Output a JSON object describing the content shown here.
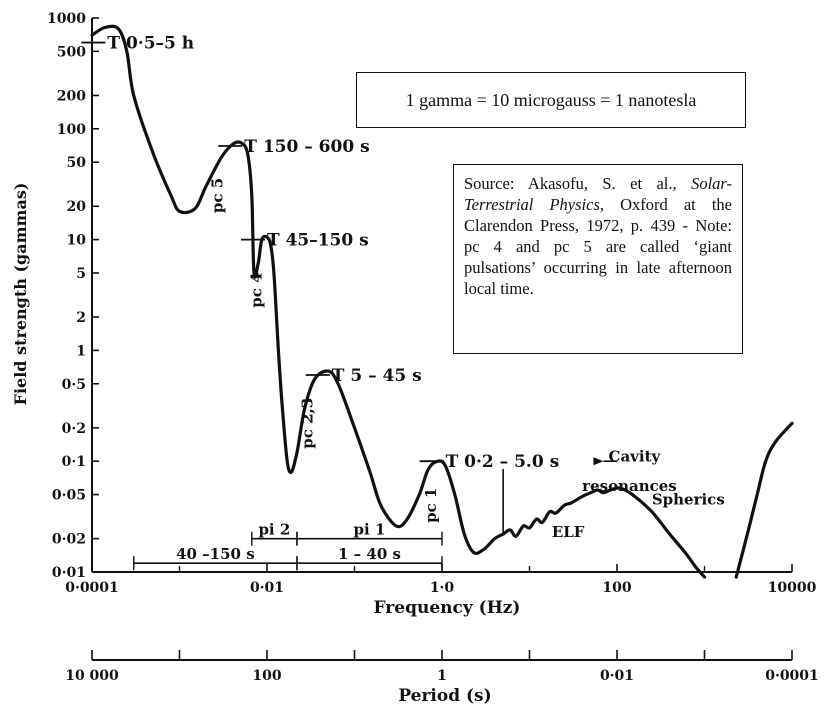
{
  "chart_data": {
    "type": "line",
    "title": "",
    "xlabel": "Frequency (Hz)",
    "ylabel": "Field strength (gammas)",
    "x_scale": "log",
    "y_scale": "log",
    "xlim": [
      0.0001,
      10000
    ],
    "ylim": [
      0.01,
      1000
    ],
    "x_ticks": [
      {
        "value": 0.0001,
        "label": "0·0001"
      },
      {
        "value": 0.01,
        "label": "0·01"
      },
      {
        "value": 1,
        "label": "1·0"
      },
      {
        "value": 100,
        "label": "100"
      },
      {
        "value": 10000,
        "label": "10000"
      }
    ],
    "y_ticks": [
      {
        "value": 1000,
        "label": "1000"
      },
      {
        "value": 500,
        "label": "500"
      },
      {
        "value": 200,
        "label": "200"
      },
      {
        "value": 100,
        "label": "100"
      },
      {
        "value": 50,
        "label": "50"
      },
      {
        "value": 20,
        "label": "20"
      },
      {
        "value": 10,
        "label": "10"
      },
      {
        "value": 5,
        "label": "5"
      },
      {
        "value": 2,
        "label": "2"
      },
      {
        "value": 1,
        "label": "1"
      },
      {
        "value": 0.5,
        "label": "0·5"
      },
      {
        "value": 0.2,
        "label": "0·2"
      },
      {
        "value": 0.1,
        "label": "0·1"
      },
      {
        "value": 0.05,
        "label": "0·05"
      },
      {
        "value": 0.02,
        "label": "0·02"
      },
      {
        "value": 0.01,
        "label": "0·01"
      }
    ],
    "series": [
      {
        "points": [
          [
            0.0001,
            700
          ],
          [
            0.00014,
            820
          ],
          [
            0.0002,
            800
          ],
          [
            0.00025,
            500
          ],
          [
            0.0003,
            200
          ],
          [
            0.0005,
            60
          ],
          [
            0.0008,
            25
          ],
          [
            0.001,
            18
          ],
          [
            0.0015,
            19
          ],
          [
            0.002,
            30
          ],
          [
            0.003,
            55
          ],
          [
            0.004,
            72
          ],
          [
            0.005,
            75
          ],
          [
            0.006,
            60
          ],
          [
            0.0067,
            25
          ],
          [
            0.0071,
            5
          ],
          [
            0.0079,
            6
          ],
          [
            0.0085,
            9
          ],
          [
            0.009,
            10.5
          ],
          [
            0.01,
            10.5
          ],
          [
            0.011,
            9
          ],
          [
            0.012,
            5
          ],
          [
            0.0135,
            1
          ],
          [
            0.015,
            0.3
          ],
          [
            0.017,
            0.1
          ],
          [
            0.019,
            0.08
          ],
          [
            0.022,
            0.12
          ],
          [
            0.027,
            0.3
          ],
          [
            0.035,
            0.55
          ],
          [
            0.05,
            0.65
          ],
          [
            0.065,
            0.5
          ],
          [
            0.1,
            0.2
          ],
          [
            0.15,
            0.08
          ],
          [
            0.2,
            0.04
          ],
          [
            0.3,
            0.026
          ],
          [
            0.4,
            0.03
          ],
          [
            0.55,
            0.05
          ],
          [
            0.7,
            0.085
          ],
          [
            0.9,
            0.1
          ],
          [
            1.1,
            0.09
          ],
          [
            1.4,
            0.05
          ],
          [
            1.8,
            0.022
          ],
          [
            2.3,
            0.015
          ],
          [
            3,
            0.016
          ],
          [
            4,
            0.02
          ],
          [
            5,
            0.022
          ],
          [
            6,
            0.024
          ],
          [
            7,
            0.021
          ],
          [
            8.5,
            0.026
          ],
          [
            10,
            0.025
          ],
          [
            12,
            0.03
          ],
          [
            14,
            0.028
          ],
          [
            17,
            0.035
          ],
          [
            20,
            0.034
          ],
          [
            25,
            0.04
          ],
          [
            30,
            0.042
          ],
          [
            40,
            0.048
          ],
          [
            50,
            0.052
          ],
          [
            60,
            0.055
          ],
          [
            70,
            0.052
          ],
          [
            90,
            0.056
          ],
          [
            110,
            0.057
          ],
          [
            150,
            0.05
          ],
          [
            250,
            0.035
          ],
          [
            400,
            0.022
          ],
          [
            600,
            0.015
          ],
          [
            800,
            0.011
          ],
          [
            1000,
            0.009
          ]
        ]
      },
      {
        "points": [
          [
            2300,
            0.009
          ],
          [
            3000,
            0.02
          ],
          [
            4000,
            0.05
          ],
          [
            5000,
            0.1
          ],
          [
            6500,
            0.15
          ],
          [
            10000,
            0.22
          ]
        ]
      }
    ],
    "annotations": [
      {
        "label": "T 0·5–5 h",
        "x": 0.00015,
        "y": 600
      },
      {
        "label": "T 150 – 600 s",
        "x": 0.0055,
        "y": 70
      },
      {
        "label": "T 45–150 s",
        "x": 0.01,
        "y": 10
      },
      {
        "label": "T 5 – 45 s",
        "x": 0.055,
        "y": 0.6
      },
      {
        "label": "T 0·2 – 5.0 s",
        "x": 1.1,
        "y": 0.1
      },
      {
        "label": "pc 5",
        "x": 0.0031,
        "y": 25
      },
      {
        "label": "pc 4",
        "x": 0.0087,
        "y": 3.5
      },
      {
        "label": "pc 2,3",
        "x": 0.033,
        "y": 0.22
      },
      {
        "label": "pc 1",
        "x": 0.85,
        "y": 0.04
      },
      {
        "label": "Cavity",
        "x": 80,
        "y": 0.11
      },
      {
        "label": "resonances",
        "x": 40,
        "y": 0.06
      },
      {
        "label": "Spherics",
        "x": 250,
        "y": 0.045
      },
      {
        "label": "ELF",
        "x": 18,
        "y": 0.023
      }
    ],
    "brackets": [
      {
        "label": "pi 2",
        "x_start": 0.0067,
        "x_end": 0.022,
        "y": 0.02
      },
      {
        "label": "pi 1",
        "x_start": 0.022,
        "x_end": 1.0,
        "y": 0.02
      },
      {
        "label": "40 –150 s",
        "x_start": 0.0003,
        "x_end": 0.022,
        "y": 0.012
      },
      {
        "label": "1 – 40 s",
        "x_start": 0.022,
        "x_end": 1.0,
        "y": 0.012
      }
    ],
    "period_axis": {
      "xlabel": "Period (s)",
      "ticks": [
        {
          "period": 10000,
          "label": "10 000"
        },
        {
          "period": 100,
          "label": "100"
        },
        {
          "period": 1,
          "label": "1"
        },
        {
          "period": 0.01,
          "label": "0·01"
        },
        {
          "period": 0.0001,
          "label": "0·0001"
        }
      ]
    },
    "grid": false,
    "legend": "none"
  },
  "boxes": {
    "units_note": "1 gamma = 10 microgauss = 1 nanotesla",
    "source_prefix": "Source: Akasofu, S. et al., ",
    "source_title": "Solar-Terrestrial Physics",
    "source_suffix": ", Oxford at the Clarendon Press, 1972, p. 439 - Note: pc 4 and pc 5 are called ‘giant pulsations’ occurring in late afternoon local time."
  },
  "colors": {
    "ink": "#111111",
    "background": "#ffffff"
  }
}
